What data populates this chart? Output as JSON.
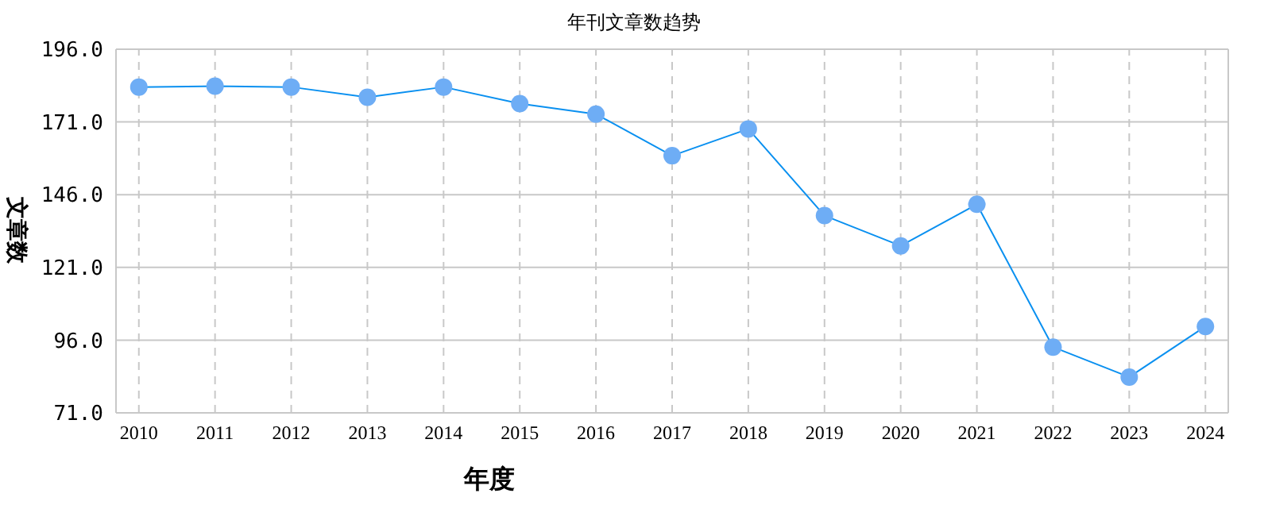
{
  "chart_data": {
    "type": "line",
    "title": "年刊文章数趋势",
    "xlabel": "年度",
    "ylabel": "文章数",
    "x": [
      2010,
      2011,
      2012,
      2013,
      2014,
      2015,
      2016,
      2017,
      2018,
      2019,
      2020,
      2021,
      2022,
      2023,
      2024
    ],
    "series": [
      {
        "color": "#0a90f0",
        "values": [
          183,
          183.3,
          183,
          179.5,
          183,
          177.3,
          173.7,
          159.4,
          168.6,
          138.8,
          128.4,
          142.7,
          93.6,
          83.3,
          100.7
        ]
      }
    ],
    "marker": "circle",
    "grid": true,
    "xlim": [
      2009.7,
      2024.3
    ],
    "xticks": [
      2010,
      2011,
      2012,
      2013,
      2014,
      2015,
      2016,
      2017,
      2018,
      2019,
      2020,
      2021,
      2022,
      2023,
      2024
    ],
    "ylim": [
      71,
      196
    ],
    "yticks": [
      {
        "value": 71,
        "label": "71.0"
      },
      {
        "value": 96,
        "label": "96.0"
      },
      {
        "value": 121,
        "label": "121.0"
      },
      {
        "value": 146,
        "label": "146.0"
      },
      {
        "value": 171,
        "label": "171.0"
      },
      {
        "value": 196,
        "label": "196.0"
      }
    ]
  }
}
